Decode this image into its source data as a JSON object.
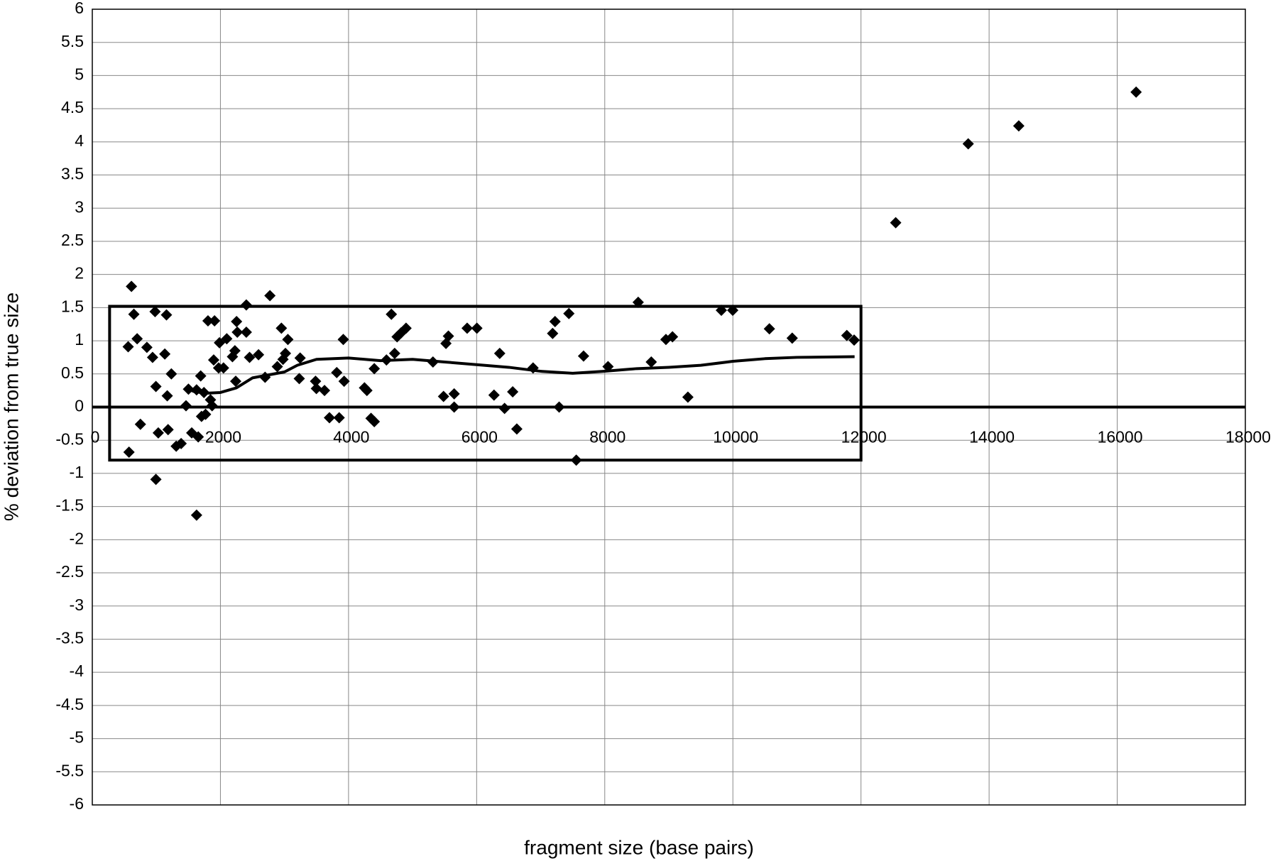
{
  "chart_data": {
    "type": "scatter",
    "xlabel": "fragment size (base pairs)",
    "ylabel": "% deviation from true size",
    "xlim": [
      0,
      18000
    ],
    "ylim": [
      -6,
      6
    ],
    "xticks": [
      0,
      2000,
      4000,
      6000,
      8000,
      10000,
      12000,
      14000,
      16000,
      18000
    ],
    "yticks": [
      -6,
      -5.5,
      -5,
      -4.5,
      -4,
      -3.5,
      -3,
      -2.5,
      -2,
      -1.5,
      -1,
      -0.5,
      0,
      0.5,
      1,
      1.5,
      2,
      2.5,
      3,
      3.5,
      4,
      4.5,
      5,
      5.5,
      6
    ],
    "grid": true,
    "box": {
      "x": [
        270,
        12000
      ],
      "y": [
        -0.8,
        1.52
      ]
    },
    "series": [
      {
        "type": "scatter",
        "color": "#000000",
        "x": [
          611,
          560,
          649,
          700,
          573,
          751,
          852,
          941,
          980,
          993,
          993,
          1030,
          1132,
          1158,
          1170,
          1183,
          1234,
          1310,
          1387,
          1463,
          1501,
          1552,
          1628,
          1628,
          1654,
          1692,
          1705,
          1743,
          1768,
          1806,
          1845,
          1870,
          1908,
          1895,
          1972,
          1985,
          2048,
          2099,
          2188,
          2226,
          2252,
          2239,
          2264,
          2404,
          2404,
          2455,
          2595,
          2697,
          2773,
          2888,
          2952,
          2977,
          3015,
          3053,
          3231,
          3244,
          3485,
          3498,
          3625,
          3702,
          3816,
          3854,
          3918,
          3931,
          4249,
          4287,
          4351,
          4402,
          4402,
          4592,
          4669,
          4720,
          4758,
          4821,
          4898,
          5318,
          5483,
          5521,
          5559,
          5649,
          5649,
          5852,
          6004,
          6271,
          6360,
          6436,
          6563,
          6627,
          6881,
          7186,
          7224,
          7288,
          7440,
          7555,
          7669,
          8051,
          8522,
          8726,
          8955,
          9057,
          9298,
          9820,
          9998,
          10570,
          10926,
          11779,
          11893,
          12542,
          13674,
          14463,
          16295
        ],
        "values": [
          1.82,
          0.91,
          1.4,
          1.03,
          -0.68,
          -0.26,
          0.9,
          0.75,
          1.44,
          0.31,
          -1.09,
          -0.39,
          0.8,
          1.39,
          0.17,
          -0.34,
          0.5,
          -0.59,
          -0.55,
          0.02,
          0.27,
          -0.39,
          -1.63,
          0.26,
          -0.45,
          0.47,
          -0.14,
          0.22,
          -0.11,
          1.3,
          0.11,
          0.02,
          1.3,
          0.71,
          0.59,
          0.97,
          0.59,
          1.03,
          0.76,
          0.85,
          1.29,
          0.39,
          1.13,
          1.54,
          1.13,
          0.75,
          0.79,
          0.45,
          1.68,
          0.61,
          1.19,
          0.72,
          0.81,
          1.02,
          0.43,
          0.74,
          0.39,
          0.28,
          0.25,
          -0.16,
          0.52,
          -0.16,
          1.02,
          0.39,
          0.29,
          0.25,
          -0.17,
          -0.22,
          0.58,
          0.71,
          1.4,
          0.81,
          1.06,
          1.12,
          1.19,
          0.68,
          0.16,
          0.96,
          1.07,
          0.2,
          0,
          1.19,
          1.19,
          0.18,
          0.81,
          -0.02,
          0.23,
          -0.33,
          0.59,
          1.11,
          1.29,
          0,
          1.41,
          -0.8,
          0.77,
          0.61,
          1.58,
          0.68,
          1.02,
          1.06,
          0.15,
          1.46,
          1.46,
          1.18,
          1.04,
          1.08,
          1.01,
          2.78,
          3.97,
          4.24,
          4.75
        ]
      },
      {
        "type": "line",
        "color": "#000000",
        "x": [
          1500,
          1600,
          1800,
          2000,
          2250,
          2500,
          3000,
          3200,
          3500,
          4000,
          4500,
          5000,
          5500,
          6000,
          6500,
          7000,
          7500,
          8000,
          8500,
          9000,
          9500,
          10000,
          10500,
          11000,
          11900
        ],
        "values": [
          0.27,
          0.23,
          0.21,
          0.22,
          0.29,
          0.44,
          0.53,
          0.63,
          0.72,
          0.74,
          0.7,
          0.72,
          0.68,
          0.64,
          0.6,
          0.54,
          0.51,
          0.54,
          0.58,
          0.6,
          0.63,
          0.69,
          0.73,
          0.75,
          0.76
        ]
      }
    ]
  }
}
